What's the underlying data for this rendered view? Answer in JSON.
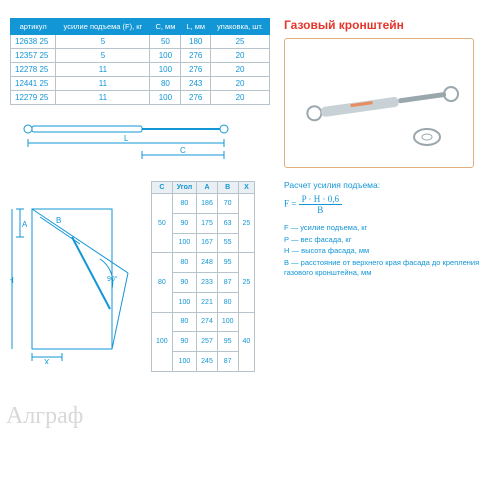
{
  "main_table": {
    "headers": [
      "артикул",
      "усилие подъема (F), кг",
      "C, мм",
      "L, мм",
      "упаковка, шт."
    ],
    "rows": [
      [
        "12638 25",
        "5",
        "50",
        "180",
        "25"
      ],
      [
        "12357 25",
        "5",
        "100",
        "276",
        "20"
      ],
      [
        "12278 25",
        "11",
        "100",
        "276",
        "20"
      ],
      [
        "12441 25",
        "11",
        "80",
        "243",
        "20"
      ],
      [
        "12279 25",
        "11",
        "100",
        "276",
        "20"
      ]
    ],
    "header_bg": "#1296d6",
    "header_color": "#ffffff",
    "cell_color": "#1296d6",
    "border_color": "#b8c4cc"
  },
  "title": "Газовый кронштейн",
  "title_color": "#e5362c",
  "diagram_top": {
    "label_L": "L",
    "label_C": "C",
    "stroke": "#1296d6"
  },
  "diagram_side": {
    "label_A": "A",
    "label_H": "H",
    "label_B": "B",
    "label_X": "X",
    "angle_label": "Угол",
    "angle_ref": "90°",
    "stroke": "#1296d6"
  },
  "calc_table": {
    "headers": [
      "C",
      "Угол",
      "A",
      "B",
      "X"
    ],
    "groups": [
      {
        "c": "50",
        "rows": [
          [
            "80",
            "186",
            "70"
          ],
          [
            "90",
            "175",
            "63"
          ],
          [
            "100",
            "167",
            "55"
          ]
        ],
        "x": "25"
      },
      {
        "c": "80",
        "rows": [
          [
            "80",
            "248",
            "95"
          ],
          [
            "90",
            "233",
            "87"
          ],
          [
            "100",
            "221",
            "80"
          ]
        ],
        "x": "25"
      },
      {
        "c": "100",
        "rows": [
          [
            "80",
            "274",
            "100"
          ],
          [
            "90",
            "257",
            "95"
          ],
          [
            "100",
            "245",
            "87"
          ]
        ],
        "x": "40"
      }
    ]
  },
  "formula_title": "Расчет усилия подъема:",
  "formula": {
    "lhs": "F = ",
    "num": "P · H · 0,6",
    "den": "B"
  },
  "legend": [
    "F — усилие подъема, кг",
    "P — вес фасада, кг",
    "H — высота фасада, мм",
    "B — расстояние от верхнего края фасада до крепления газового кронштейна, мм"
  ],
  "watermark": "Алграф",
  "product_color": "#b9c5cb",
  "photo_border": "#e0b080"
}
